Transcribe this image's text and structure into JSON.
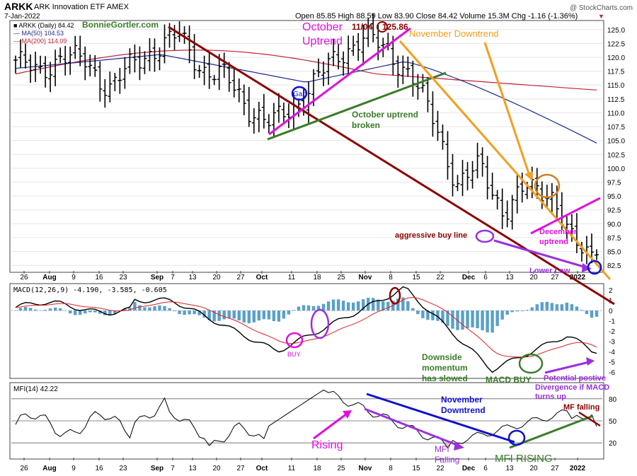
{
  "header": {
    "symbol": "ARKK",
    "name": "ARK Innovation ETF",
    "exchange": "AMEX",
    "date": "7-Jan-2022",
    "ohlc": "Open 85.85  High 88.59  Low 83.90  Close 84.42  Volume 15.3M  Chg -1.16 (-1.36%)",
    "change_marker": "▼",
    "watermark": "@ StockCharts.com",
    "author": "BonnieGortler.com"
  },
  "legend": {
    "price": "■ ARKK (Daily) 84.42",
    "ma50": "— MA(50) 104.53",
    "ma200": "— MA(200) 114.09",
    "macd": "MACD(12,26,9) -4.190, -3.585, -0.605",
    "mfi": "MFI(14) 42.22"
  },
  "colors": {
    "price": "#000000",
    "ma50": "#1f2a8c",
    "ma200": "#c0203a",
    "macd_line": "#000000",
    "signal_line": "#e02020",
    "histogram": "#5aa0c8",
    "mfi_fill": "#f0c8c8",
    "dark_red": "#8b0000",
    "magenta": "#e010e0",
    "orange": "#f0a020",
    "green": "#3a7d2a",
    "blue": "#1010d0",
    "purple": "#9a30e0"
  },
  "axes": {
    "price_ticks": [
      "125.0",
      "122.5",
      "120.0",
      "117.5",
      "115.0",
      "112.5",
      "110.0",
      "107.5",
      "105.0",
      "102.5",
      "100.0",
      "97.5",
      "95.0",
      "92.5",
      "90.0",
      "87.5",
      "85.0",
      "82.5"
    ],
    "macd_ticks": [
      "2",
      "1",
      "0",
      "-1",
      "-2",
      "-3",
      "-4",
      "-5",
      "-6"
    ],
    "mfi_ticks": [
      "80",
      "50",
      "20"
    ],
    "date_ticks": [
      "26",
      "Aug",
      "9",
      "16",
      "23",
      "Sep",
      "7",
      "13",
      "20",
      "27",
      "Oct",
      "11",
      "18",
      "25",
      "Nov",
      "8",
      "15",
      "22",
      "Dec",
      "6",
      "13",
      "20",
      "27",
      "2022"
    ]
  },
  "annotations": {
    "october_uptrend": "October\nUptrend",
    "peak_date": "11/04",
    "peak_value": "125.86",
    "november_downtrend": "November Downtrend",
    "gap": "Gap",
    "october_broken": "October uptrend\nbroken",
    "aggressive_buy": "aggressive buy line",
    "december_uptrend": "December\nuptrend",
    "lower_low": "Lower Low",
    "buy": "BUY",
    "downside_slowed": "Downside\nmomentum\nhas slowed",
    "macd_buy": "MACD BUY",
    "divergence": "Potential postive\nDivergence if MACD\nturns up",
    "rising": "Rising",
    "mfi_falling": "MFI\nFalling",
    "mfi_nov_downtrend": "November\nDowntrend",
    "mfi_rising": "MFI RISING",
    "mf_falling": "MF falling"
  },
  "chart_data": {
    "type": "ohlc",
    "title": "ARKK ARK Innovation ETF AMEX",
    "price_range": [
      81.5,
      126.5
    ],
    "price_series": [
      {
        "date": "2021-07-21",
        "close": 119.5
      },
      {
        "date": "2021-07-28",
        "close": 117.0
      },
      {
        "date": "2021-08-04",
        "close": 120.5
      },
      {
        "date": "2021-08-11",
        "close": 119.0
      },
      {
        "date": "2021-08-18",
        "close": 114.5
      },
      {
        "date": "2021-08-25",
        "close": 118.5
      },
      {
        "date": "2021-09-01",
        "close": 121.5
      },
      {
        "date": "2021-09-08",
        "close": 124.0
      },
      {
        "date": "2021-09-15",
        "close": 118.0
      },
      {
        "date": "2021-09-22",
        "close": 116.5
      },
      {
        "date": "2021-09-29",
        "close": 111.0
      },
      {
        "date": "2021-10-06",
        "close": 108.0
      },
      {
        "date": "2021-10-13",
        "close": 111.0
      },
      {
        "date": "2021-10-20",
        "close": 116.5
      },
      {
        "date": "2021-10-27",
        "close": 120.5
      },
      {
        "date": "2021-11-03",
        "close": 124.0
      },
      {
        "date": "2021-11-10",
        "close": 121.0
      },
      {
        "date": "2021-11-17",
        "close": 117.0
      },
      {
        "date": "2021-11-24",
        "close": 108.5
      },
      {
        "date": "2021-12-01",
        "close": 97.0
      },
      {
        "date": "2021-12-08",
        "close": 100.5
      },
      {
        "date": "2021-12-15",
        "close": 92.0
      },
      {
        "date": "2021-12-22",
        "close": 96.5
      },
      {
        "date": "2021-12-29",
        "close": 96.0
      },
      {
        "date": "2022-01-05",
        "close": 86.0
      },
      {
        "date": "2022-01-07",
        "close": 84.42
      }
    ],
    "ma50_last": 104.53,
    "ma200_last": 114.09,
    "macd": {
      "macd": -4.19,
      "signal": -3.585,
      "histogram": -0.605,
      "range": [
        -6.5,
        2.5
      ]
    },
    "mfi": {
      "value": 42.22,
      "range": [
        0,
        100
      ],
      "levels": [
        20,
        50,
        80
      ]
    }
  }
}
